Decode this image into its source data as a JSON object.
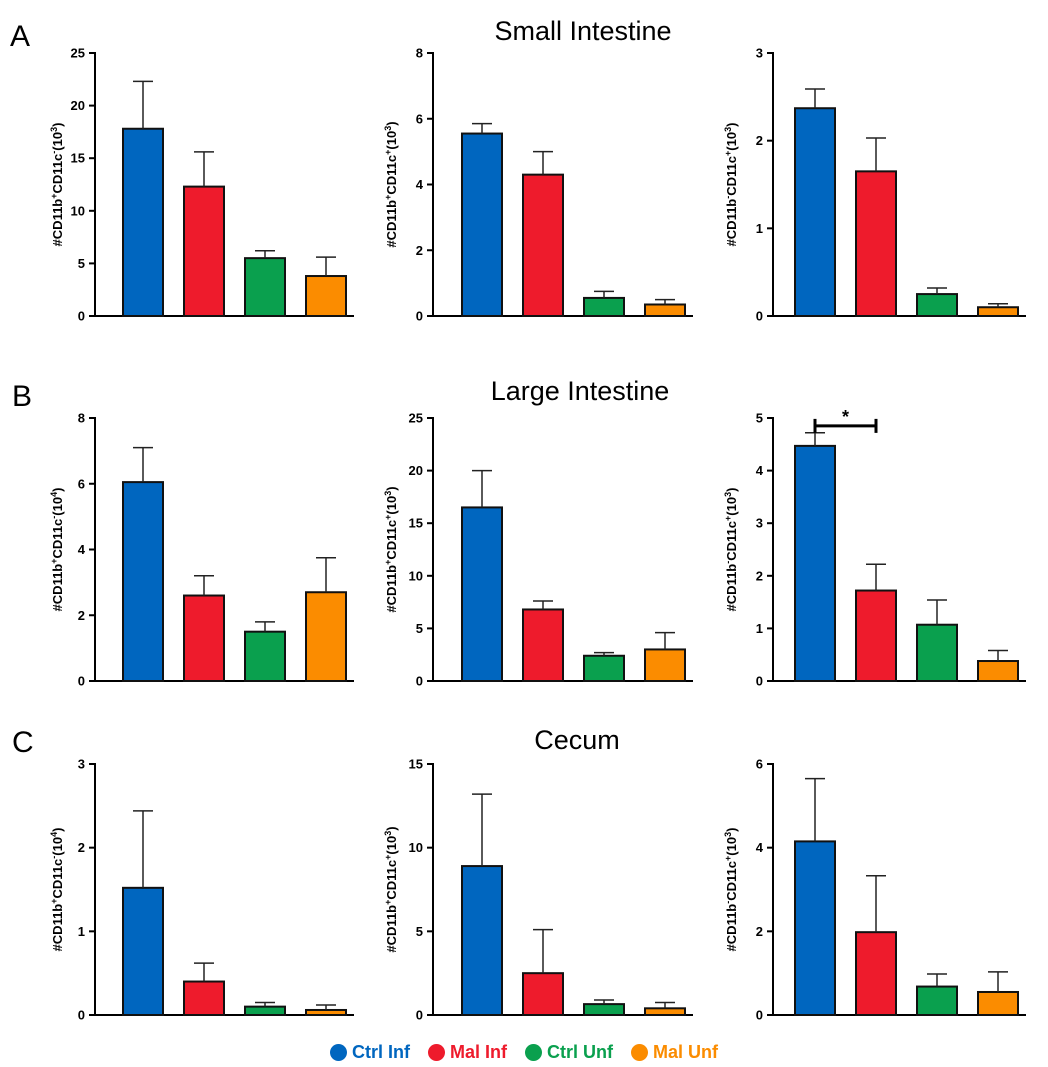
{
  "figure": {
    "rows": [
      {
        "letter": "A",
        "title": "Small Intestine"
      },
      {
        "letter": "B",
        "title": "Large Intestine"
      },
      {
        "letter": "C",
        "title": "Cecum"
      }
    ],
    "legend": [
      {
        "label": "Ctrl Inf",
        "color": "#0066bf"
      },
      {
        "label": "Mal Inf",
        "color": "#ee1b2c"
      },
      {
        "label": "Ctrl Unf",
        "color": "#0aa04e"
      },
      {
        "label": "Mal Unf",
        "color": "#fb8c00"
      }
    ]
  },
  "chart_data": [
    {
      "type": "bar",
      "panel": "A",
      "ylabel": "#CD11b+CD11c-(10^3)",
      "ylabel_parts": [
        [
          "#CD11b",
          ""
        ],
        [
          "+",
          "sup"
        ],
        [
          "CD11c",
          ""
        ],
        [
          "-",
          "sup"
        ],
        [
          "(10",
          ""
        ],
        [
          "3",
          "sup"
        ],
        [
          ")",
          ""
        ]
      ],
      "categories": [
        "Ctrl Inf",
        "Mal Inf",
        "Ctrl Unf",
        "Mal Unf"
      ],
      "values": [
        17.8,
        12.3,
        5.5,
        3.8
      ],
      "errors": [
        4.5,
        3.3,
        0.7,
        1.8
      ],
      "ylim": [
        0,
        25
      ],
      "yticks": [
        0,
        5,
        10,
        15,
        20,
        25
      ]
    },
    {
      "type": "bar",
      "panel": "A",
      "ylabel": "#CD11b+CD11c+(10^3)",
      "ylabel_parts": [
        [
          "#CD11b",
          ""
        ],
        [
          "+",
          "sup"
        ],
        [
          "CD11c",
          ""
        ],
        [
          "+",
          "sup"
        ],
        [
          "(10",
          ""
        ],
        [
          "3",
          "sup"
        ],
        [
          ")",
          ""
        ]
      ],
      "categories": [
        "Ctrl Inf",
        "Mal Inf",
        "Ctrl Unf",
        "Mal Unf"
      ],
      "values": [
        5.55,
        4.3,
        0.55,
        0.35
      ],
      "errors": [
        0.3,
        0.7,
        0.2,
        0.15
      ],
      "ylim": [
        0,
        8
      ],
      "yticks": [
        0,
        2,
        4,
        6,
        8
      ]
    },
    {
      "type": "bar",
      "panel": "A",
      "ylabel": "#CD11b-CD11c+(10^3)",
      "ylabel_parts": [
        [
          "#CD11b",
          ""
        ],
        [
          "-",
          "sup"
        ],
        [
          "CD11c",
          ""
        ],
        [
          "+",
          "sup"
        ],
        [
          "(10",
          ""
        ],
        [
          "3",
          "sup"
        ],
        [
          ")",
          ""
        ]
      ],
      "categories": [
        "Ctrl Inf",
        "Mal Inf",
        "Ctrl Unf",
        "Mal Unf"
      ],
      "values": [
        2.37,
        1.65,
        0.25,
        0.1
      ],
      "errors": [
        0.22,
        0.38,
        0.07,
        0.04
      ],
      "ylim": [
        0,
        3
      ],
      "yticks": [
        0,
        1,
        2,
        3
      ]
    },
    {
      "type": "bar",
      "panel": "B",
      "ylabel": "#CD11b+CD11c-(10^4)",
      "ylabel_parts": [
        [
          "#CD11b",
          ""
        ],
        [
          "+",
          "sup"
        ],
        [
          "CD11c",
          ""
        ],
        [
          "-",
          "sup"
        ],
        [
          "(10",
          ""
        ],
        [
          "4",
          "sup"
        ],
        [
          ")",
          ""
        ]
      ],
      "categories": [
        "Ctrl Inf",
        "Mal Inf",
        "Ctrl Unf",
        "Mal Unf"
      ],
      "values": [
        6.05,
        2.6,
        1.5,
        2.7
      ],
      "errors": [
        1.05,
        0.6,
        0.3,
        1.05
      ],
      "ylim": [
        0,
        8
      ],
      "yticks": [
        0,
        2,
        4,
        6,
        8
      ]
    },
    {
      "type": "bar",
      "panel": "B",
      "ylabel": "#CD11b+CD11c+(10^3)",
      "ylabel_parts": [
        [
          "#CD11b",
          ""
        ],
        [
          "+",
          "sup"
        ],
        [
          "CD11c",
          ""
        ],
        [
          "+",
          "sup"
        ],
        [
          "(10",
          ""
        ],
        [
          "3",
          "sup"
        ],
        [
          ")",
          ""
        ]
      ],
      "categories": [
        "Ctrl Inf",
        "Mal Inf",
        "Ctrl Unf",
        "Mal Unf"
      ],
      "values": [
        16.5,
        6.8,
        2.4,
        3.0
      ],
      "errors": [
        3.5,
        0.8,
        0.3,
        1.6
      ],
      "ylim": [
        0,
        25
      ],
      "yticks": [
        0,
        5,
        10,
        15,
        20,
        25
      ]
    },
    {
      "type": "bar",
      "panel": "B",
      "ylabel": "#CD11b-CD11c+(10^3)",
      "ylabel_parts": [
        [
          "#CD11b",
          ""
        ],
        [
          "-",
          "sup"
        ],
        [
          "CD11c",
          ""
        ],
        [
          "+",
          "sup"
        ],
        [
          "(10",
          ""
        ],
        [
          "3",
          "sup"
        ],
        [
          ")",
          ""
        ]
      ],
      "categories": [
        "Ctrl Inf",
        "Mal Inf",
        "Ctrl Unf",
        "Mal Unf"
      ],
      "values": [
        4.47,
        1.72,
        1.07,
        0.38
      ],
      "errors": [
        0.25,
        0.5,
        0.47,
        0.2
      ],
      "ylim": [
        0,
        5
      ],
      "yticks": [
        0,
        1,
        2,
        3,
        4,
        5
      ],
      "significance": {
        "from": 0,
        "to": 1,
        "label": "*",
        "y": 4.85
      }
    },
    {
      "type": "bar",
      "panel": "C",
      "ylabel": "#CD11b+CD11c-(10^4)",
      "ylabel_parts": [
        [
          "#CD11b",
          ""
        ],
        [
          "+",
          "sup"
        ],
        [
          "CD11c",
          ""
        ],
        [
          "-",
          "sup"
        ],
        [
          "(10",
          ""
        ],
        [
          "4",
          "sup"
        ],
        [
          ")",
          ""
        ]
      ],
      "categories": [
        "Ctrl Inf",
        "Mal Inf",
        "Ctrl Unf",
        "Mal Unf"
      ],
      "values": [
        1.52,
        0.4,
        0.1,
        0.06
      ],
      "errors": [
        0.92,
        0.22,
        0.05,
        0.06
      ],
      "ylim": [
        0,
        3
      ],
      "yticks": [
        0,
        1,
        2,
        3
      ]
    },
    {
      "type": "bar",
      "panel": "C",
      "ylabel": "#CD11b+CD11c+(10^3)",
      "ylabel_parts": [
        [
          "#CD11b",
          ""
        ],
        [
          "+",
          "sup"
        ],
        [
          "CD11c",
          ""
        ],
        [
          "+",
          "sup"
        ],
        [
          "(10",
          ""
        ],
        [
          "3",
          "sup"
        ],
        [
          ")",
          ""
        ]
      ],
      "categories": [
        "Ctrl Inf",
        "Mal Inf",
        "Ctrl Unf",
        "Mal Unf"
      ],
      "values": [
        8.9,
        2.5,
        0.65,
        0.4
      ],
      "errors": [
        4.3,
        2.6,
        0.25,
        0.35
      ],
      "ylim": [
        0,
        15
      ],
      "yticks": [
        0,
        5,
        10,
        15
      ]
    },
    {
      "type": "bar",
      "panel": "C",
      "ylabel": "#CD11b-CD11c+(10^3)",
      "ylabel_parts": [
        [
          "#CD11b",
          ""
        ],
        [
          "-",
          "sup"
        ],
        [
          "CD11c",
          ""
        ],
        [
          "+",
          "sup"
        ],
        [
          "(10",
          ""
        ],
        [
          "3",
          "sup"
        ],
        [
          ")",
          ""
        ]
      ],
      "categories": [
        "Ctrl Inf",
        "Mal Inf",
        "Ctrl Unf",
        "Mal Unf"
      ],
      "values": [
        4.15,
        1.98,
        0.68,
        0.55
      ],
      "errors": [
        1.5,
        1.35,
        0.3,
        0.48
      ],
      "ylim": [
        0,
        6
      ],
      "yticks": [
        0,
        2,
        4,
        6
      ]
    }
  ]
}
